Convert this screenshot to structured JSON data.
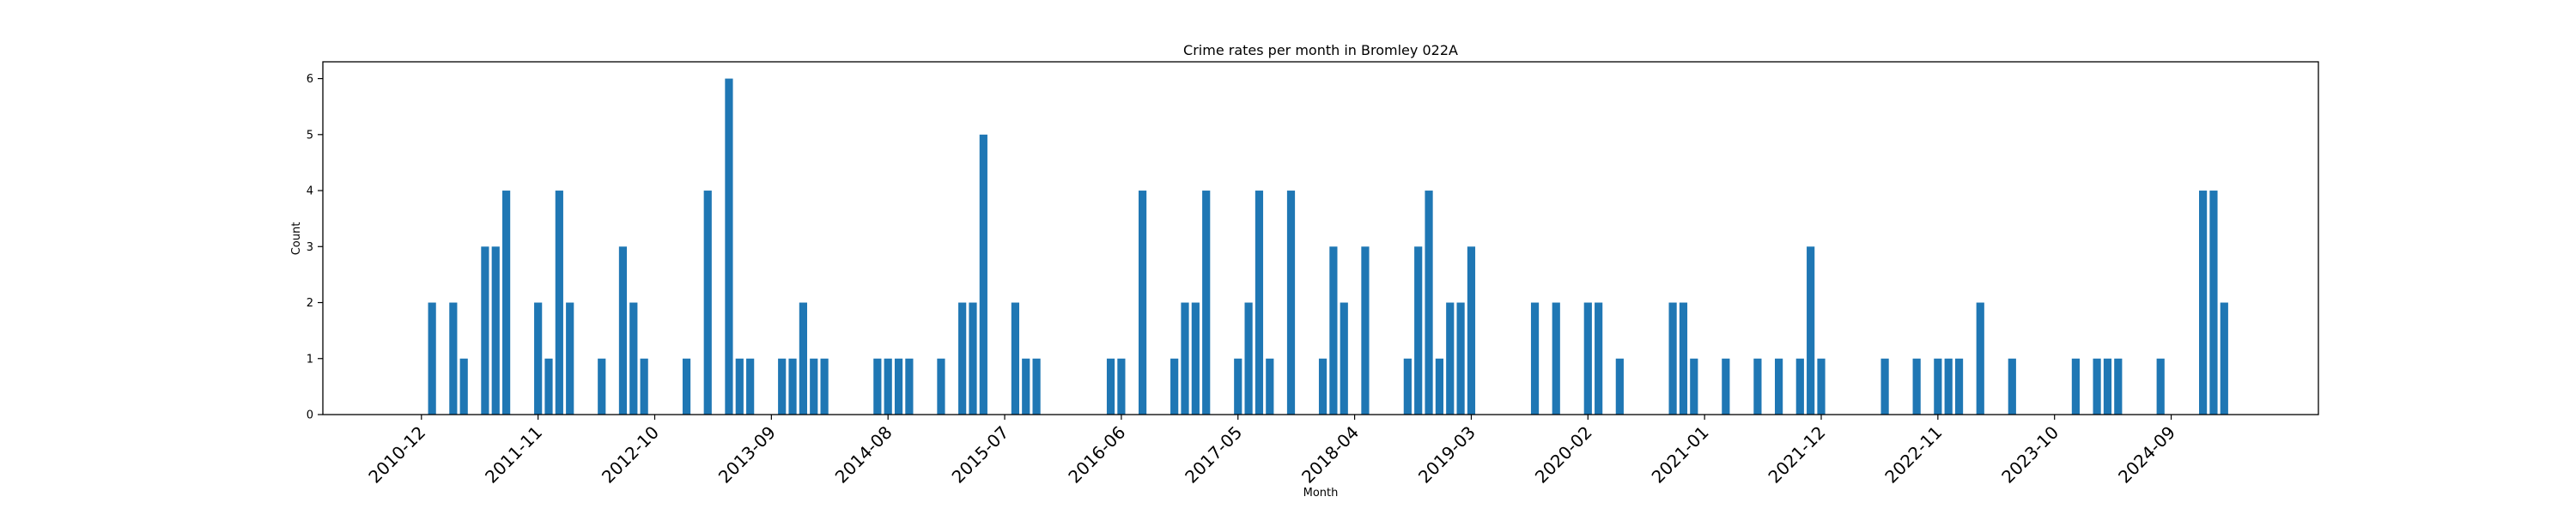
{
  "chart_data": {
    "type": "bar",
    "title": "Crime rates per month in Bromley 022A",
    "xlabel": "Month",
    "ylabel": "Count",
    "ylim": [
      0,
      6.3
    ],
    "yticks": [
      0,
      1,
      2,
      3,
      4,
      5,
      6
    ],
    "grid": false,
    "bar_color": "#1f77b4",
    "xtick_labels": [
      "2010-12",
      "2011-11",
      "2012-10",
      "2013-09",
      "2014-08",
      "2015-07",
      "2016-06",
      "2017-05",
      "2018-04",
      "2019-03",
      "2020-02",
      "2021-01",
      "2021-12",
      "2022-11",
      "2023-10",
      "2024-09"
    ],
    "points": [
      {
        "x": "2011-01",
        "y": 2
      },
      {
        "x": "2011-03",
        "y": 2
      },
      {
        "x": "2011-04",
        "y": 1
      },
      {
        "x": "2011-06",
        "y": 3
      },
      {
        "x": "2011-07",
        "y": 3
      },
      {
        "x": "2011-08",
        "y": 4
      },
      {
        "x": "2011-11",
        "y": 2
      },
      {
        "x": "2011-12",
        "y": 1
      },
      {
        "x": "2012-01",
        "y": 4
      },
      {
        "x": "2012-02",
        "y": 2
      },
      {
        "x": "2012-05",
        "y": 1
      },
      {
        "x": "2012-07",
        "y": 3
      },
      {
        "x": "2012-08",
        "y": 2
      },
      {
        "x": "2012-09",
        "y": 1
      },
      {
        "x": "2013-01",
        "y": 1
      },
      {
        "x": "2013-03",
        "y": 4
      },
      {
        "x": "2013-05",
        "y": 6
      },
      {
        "x": "2013-06",
        "y": 1
      },
      {
        "x": "2013-07",
        "y": 1
      },
      {
        "x": "2013-10",
        "y": 1
      },
      {
        "x": "2013-11",
        "y": 1
      },
      {
        "x": "2013-12",
        "y": 2
      },
      {
        "x": "2014-01",
        "y": 1
      },
      {
        "x": "2014-02",
        "y": 1
      },
      {
        "x": "2014-07",
        "y": 1
      },
      {
        "x": "2014-08",
        "y": 1
      },
      {
        "x": "2014-09",
        "y": 1
      },
      {
        "x": "2014-10",
        "y": 1
      },
      {
        "x": "2015-01",
        "y": 1
      },
      {
        "x": "2015-03",
        "y": 2
      },
      {
        "x": "2015-04",
        "y": 2
      },
      {
        "x": "2015-05",
        "y": 5
      },
      {
        "x": "2015-08",
        "y": 2
      },
      {
        "x": "2015-09",
        "y": 1
      },
      {
        "x": "2015-10",
        "y": 1
      },
      {
        "x": "2016-05",
        "y": 1
      },
      {
        "x": "2016-06",
        "y": 1
      },
      {
        "x": "2016-08",
        "y": 4
      },
      {
        "x": "2016-11",
        "y": 1
      },
      {
        "x": "2016-12",
        "y": 2
      },
      {
        "x": "2017-01",
        "y": 2
      },
      {
        "x": "2017-02",
        "y": 4
      },
      {
        "x": "2017-05",
        "y": 1
      },
      {
        "x": "2017-06",
        "y": 2
      },
      {
        "x": "2017-07",
        "y": 4
      },
      {
        "x": "2017-08",
        "y": 1
      },
      {
        "x": "2017-10",
        "y": 4
      },
      {
        "x": "2018-01",
        "y": 1
      },
      {
        "x": "2018-02",
        "y": 3
      },
      {
        "x": "2018-03",
        "y": 2
      },
      {
        "x": "2018-05",
        "y": 3
      },
      {
        "x": "2018-09",
        "y": 1
      },
      {
        "x": "2018-10",
        "y": 3
      },
      {
        "x": "2018-11",
        "y": 4
      },
      {
        "x": "2018-12",
        "y": 1
      },
      {
        "x": "2019-01",
        "y": 2
      },
      {
        "x": "2019-02",
        "y": 2
      },
      {
        "x": "2019-03",
        "y": 3
      },
      {
        "x": "2019-09",
        "y": 2
      },
      {
        "x": "2019-11",
        "y": 2
      },
      {
        "x": "2020-02",
        "y": 2
      },
      {
        "x": "2020-03",
        "y": 2
      },
      {
        "x": "2020-05",
        "y": 1
      },
      {
        "x": "2020-10",
        "y": 2
      },
      {
        "x": "2020-11",
        "y": 2
      },
      {
        "x": "2020-12",
        "y": 1
      },
      {
        "x": "2021-03",
        "y": 1
      },
      {
        "x": "2021-06",
        "y": 1
      },
      {
        "x": "2021-08",
        "y": 1
      },
      {
        "x": "2021-10",
        "y": 1
      },
      {
        "x": "2021-11",
        "y": 3
      },
      {
        "x": "2021-12",
        "y": 1
      },
      {
        "x": "2022-06",
        "y": 1
      },
      {
        "x": "2022-09",
        "y": 1
      },
      {
        "x": "2022-11",
        "y": 1
      },
      {
        "x": "2022-12",
        "y": 1
      },
      {
        "x": "2023-01",
        "y": 1
      },
      {
        "x": "2023-03",
        "y": 2
      },
      {
        "x": "2023-06",
        "y": 1
      },
      {
        "x": "2023-12",
        "y": 1
      },
      {
        "x": "2024-02",
        "y": 1
      },
      {
        "x": "2024-03",
        "y": 1
      },
      {
        "x": "2024-04",
        "y": 1
      },
      {
        "x": "2024-08",
        "y": 1
      },
      {
        "x": "2024-12",
        "y": 4
      },
      {
        "x": "2025-01",
        "y": 4
      },
      {
        "x": "2025-02",
        "y": 2
      }
    ]
  }
}
